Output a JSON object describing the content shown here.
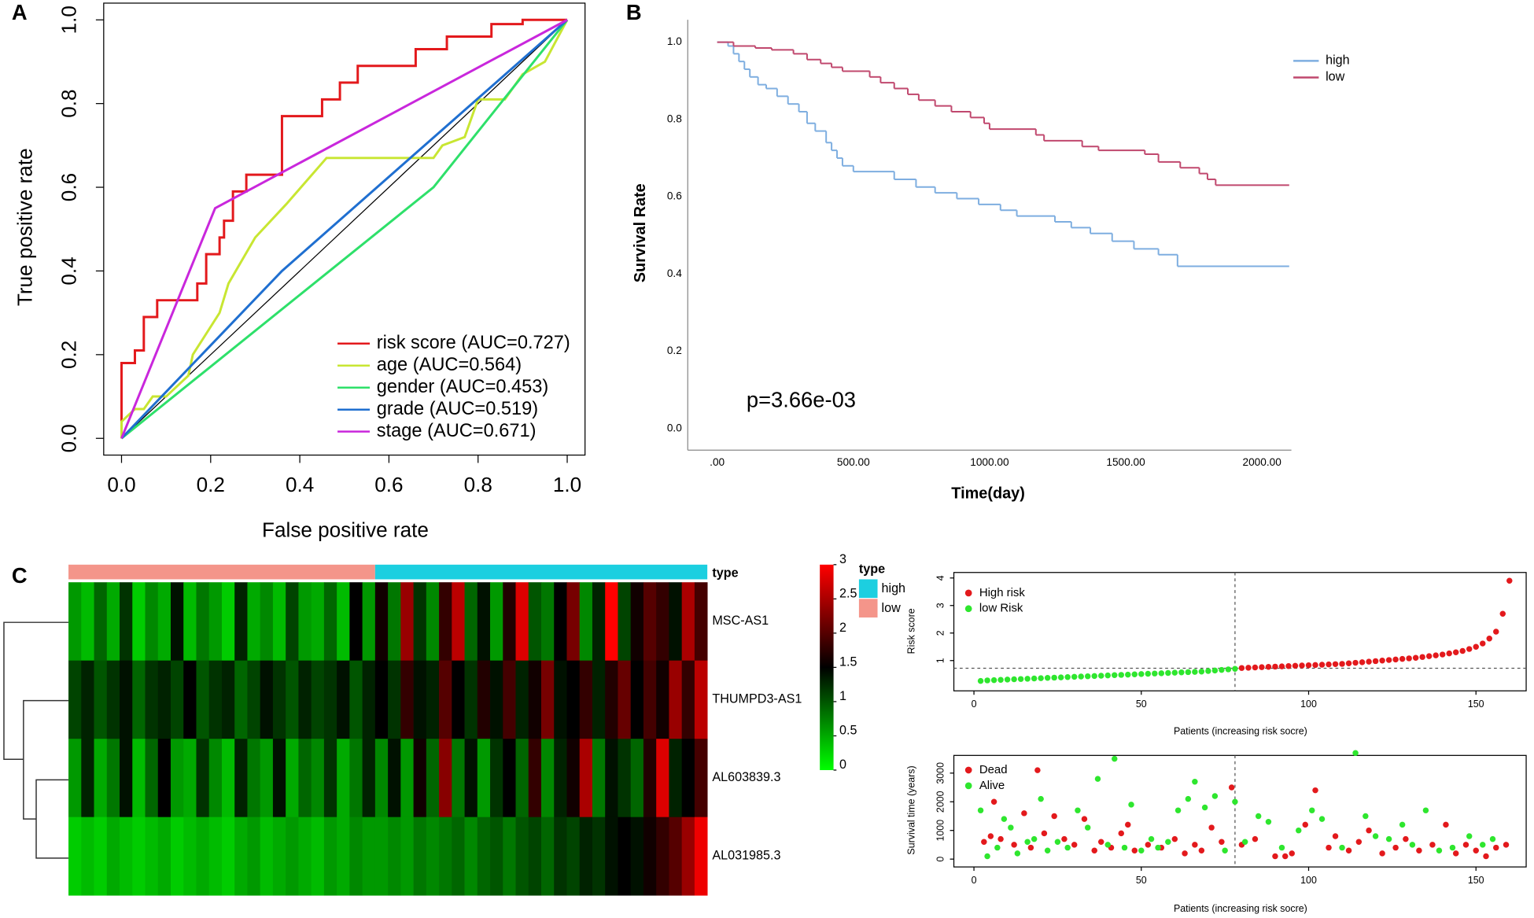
{
  "panel_labels": [
    "A",
    "B",
    "C"
  ],
  "chart_data": [
    {
      "type": "line",
      "xlabel": "False positive rate",
      "ylabel": "True positive rate",
      "xlim": [
        -0.04,
        1.04
      ],
      "ylim": [
        -0.04,
        1.04
      ],
      "xticks": [
        {
          "value": 0,
          "label": "0.0"
        },
        0.2,
        0.4,
        0.6,
        0.8,
        {
          "value": 1,
          "label": "1.0"
        }
      ],
      "yticks": [
        {
          "value": 0,
          "label": "0.0"
        },
        0.2,
        0.4,
        0.6,
        0.8,
        {
          "value": 1,
          "label": "1.0"
        }
      ],
      "legend": "bottom-right",
      "series": [
        {
          "name": "risk score (AUC=0.727)",
          "color": "#e3191c",
          "x": [
            0,
            0,
            0.03,
            0.03,
            0.05,
            0.05,
            0.08,
            0.08,
            0.17,
            0.17,
            0.19,
            0.19,
            0.22,
            0.22,
            0.23,
            0.23,
            0.25,
            0.25,
            0.28,
            0.28,
            0.36,
            0.36,
            0.45,
            0.45,
            0.49,
            0.49,
            0.53,
            0.53,
            0.66,
            0.66,
            0.73,
            0.73,
            0.83,
            0.83,
            0.9,
            0.9,
            1
          ],
          "values": [
            0,
            0.18,
            0.18,
            0.21,
            0.21,
            0.29,
            0.29,
            0.33,
            0.33,
            0.37,
            0.37,
            0.44,
            0.44,
            0.48,
            0.48,
            0.52,
            0.52,
            0.59,
            0.59,
            0.63,
            0.63,
            0.77,
            0.77,
            0.81,
            0.81,
            0.85,
            0.85,
            0.89,
            0.89,
            0.93,
            0.93,
            0.96,
            0.96,
            0.99,
            0.99,
            1,
            1
          ]
        },
        {
          "name": "age (AUC=0.564)",
          "color": "#c8e632",
          "x": [
            0,
            0,
            0.03,
            0.05,
            0.07,
            0.1,
            0.15,
            0.16,
            0.22,
            0.24,
            0.3,
            0.37,
            0.46,
            0.7,
            0.72,
            0.77,
            0.8,
            0.86,
            0.9,
            0.95,
            1
          ],
          "values": [
            0,
            0.04,
            0.07,
            0.07,
            0.1,
            0.1,
            0.15,
            0.2,
            0.3,
            0.37,
            0.48,
            0.56,
            0.67,
            0.67,
            0.7,
            0.72,
            0.81,
            0.81,
            0.87,
            0.9,
            1
          ]
        },
        {
          "name": "gender (AUC=0.453)",
          "color": "#2ee06a",
          "x": [
            0,
            0.7,
            1
          ],
          "values": [
            0,
            0.6,
            1
          ]
        },
        {
          "name": "grade (AUC=0.519)",
          "color": "#1f6fd0",
          "x": [
            0,
            0.36,
            1
          ],
          "values": [
            0,
            0.4,
            1
          ]
        },
        {
          "name": "stage (AUC=0.671)",
          "color": "#c927dc",
          "x": [
            0,
            0.21,
            1
          ],
          "values": [
            0,
            0.55,
            1
          ]
        }
      ]
    },
    {
      "type": "step",
      "xlabel": "Time(day)",
      "ylabel": "Survival Rate",
      "annotation": "p=3.66e-03",
      "xlim": [
        -108,
        2108
      ],
      "ylim": [
        -0.056,
        1.058
      ],
      "xticks": [
        {
          "value": 0,
          "label": ".00"
        },
        {
          "value": 500,
          "label": "500.00"
        },
        {
          "value": 1000,
          "label": "1000.00"
        },
        {
          "value": 1500,
          "label": "1500.00"
        },
        {
          "value": 2000,
          "label": "2000.00"
        }
      ],
      "yticks": [
        {
          "value": 0,
          "label": "0.0"
        },
        0.2,
        0.4,
        0.6,
        0.8,
        {
          "value": 1,
          "label": "1.0"
        }
      ],
      "legend": "top-right",
      "series": [
        {
          "name": "high",
          "color": "#7eaee0",
          "x": [
            0,
            40,
            60,
            80,
            100,
            120,
            150,
            180,
            220,
            260,
            300,
            330,
            360,
            400,
            420,
            440,
            460,
            500,
            650,
            730,
            800,
            880,
            960,
            1040,
            1100,
            1240,
            1300,
            1370,
            1450,
            1530,
            1620,
            1690,
            2100
          ],
          "values": [
            1.0,
            0.99,
            0.97,
            0.95,
            0.93,
            0.91,
            0.89,
            0.88,
            0.86,
            0.84,
            0.82,
            0.79,
            0.77,
            0.74,
            0.72,
            0.7,
            0.68,
            0.665,
            0.645,
            0.625,
            0.61,
            0.595,
            0.58,
            0.565,
            0.55,
            0.535,
            0.52,
            0.505,
            0.485,
            0.465,
            0.45,
            0.42,
            0.42
          ]
        },
        {
          "name": "low",
          "color": "#c0486e",
          "x": [
            0,
            60,
            140,
            200,
            280,
            330,
            380,
            420,
            460,
            560,
            600,
            650,
            700,
            740,
            800,
            860,
            930,
            980,
            1000,
            1170,
            1200,
            1340,
            1400,
            1570,
            1620,
            1700,
            1770,
            1800,
            1830,
            2100
          ],
          "values": [
            1.0,
            0.99,
            0.985,
            0.98,
            0.97,
            0.955,
            0.945,
            0.935,
            0.925,
            0.91,
            0.895,
            0.88,
            0.865,
            0.85,
            0.835,
            0.82,
            0.805,
            0.79,
            0.775,
            0.76,
            0.745,
            0.73,
            0.72,
            0.71,
            0.69,
            0.675,
            0.66,
            0.645,
            0.63,
            0.63
          ]
        }
      ]
    },
    {
      "type": "heatmap",
      "annotation_title": "type",
      "rows": [
        "MSC-AS1",
        "THUMPD3-AS1",
        "AL603839.3",
        "AL031985.3"
      ],
      "type_groups": [
        {
          "name": "low",
          "color": "#f4958a",
          "count": 24
        },
        {
          "name": "high",
          "color": "#1ccfe0",
          "count": 26
        }
      ],
      "colorscale": [
        "#00ff00",
        "#000000",
        "#ff0000"
      ],
      "zlim": [
        0,
        3
      ],
      "zticks": [
        0,
        0.5,
        1,
        1.5,
        2,
        2.5,
        3
      ],
      "values": [
        [
          0.6,
          0.4,
          0.9,
          0.5,
          1.2,
          0.3,
          0.7,
          0.5,
          1.4,
          0.4,
          0.8,
          0.6,
          0.3,
          1.3,
          0.5,
          0.7,
          0.4,
          1.1,
          0.6,
          0.5,
          0.9,
          0.4,
          1.5,
          0.6,
          1.6,
          0.8,
          2.4,
          1.2,
          0.7,
          1.8,
          2.6,
          0.9,
          1.4,
          0.6,
          1.7,
          2.8,
          1.0,
          0.8,
          1.5,
          2.2,
          0.7,
          1.3,
          3.0,
          1.1,
          1.6,
          2.0,
          1.8,
          1.4,
          2.5,
          1.9
        ],
        [
          1.1,
          1.3,
          1.0,
          1.2,
          1.4,
          0.9,
          1.2,
          1.3,
          1.1,
          1.5,
          1.0,
          1.2,
          1.3,
          0.9,
          1.1,
          1.4,
          1.2,
          1.0,
          1.3,
          1.1,
          1.2,
          1.4,
          1.0,
          1.3,
          1.5,
          1.2,
          1.8,
          1.4,
          1.3,
          2.0,
          1.5,
          1.2,
          1.7,
          1.4,
          1.9,
          1.3,
          1.6,
          2.2,
          1.4,
          1.5,
          1.8,
          1.3,
          1.7,
          2.1,
          1.5,
          1.9,
          1.6,
          2.4,
          1.8,
          2.6
        ],
        [
          0.6,
          1.3,
          0.5,
          0.8,
          1.4,
          0.4,
          0.9,
          1.5,
          0.6,
          0.5,
          1.2,
          0.7,
          0.4,
          1.3,
          0.8,
          0.6,
          1.4,
          0.5,
          0.9,
          0.7,
          1.2,
          0.5,
          0.8,
          1.3,
          0.7,
          1.4,
          0.6,
          1.6,
          0.9,
          2.3,
          0.8,
          1.4,
          0.6,
          1.2,
          1.5,
          0.9,
          1.8,
          0.7,
          1.3,
          1.6,
          2.5,
          0.8,
          1.4,
          1.2,
          0.9,
          1.7,
          2.8,
          1.3,
          1.5,
          1.9
        ],
        [
          0.3,
          0.4,
          0.3,
          0.5,
          0.4,
          0.3,
          0.4,
          0.5,
          0.3,
          0.4,
          0.5,
          0.4,
          0.3,
          0.5,
          0.6,
          0.4,
          0.5,
          0.6,
          0.5,
          0.4,
          0.6,
          0.5,
          0.7,
          0.6,
          0.6,
          0.7,
          0.6,
          0.8,
          0.7,
          0.8,
          0.9,
          0.7,
          0.9,
          1.0,
          0.8,
          1.0,
          1.1,
          0.9,
          1.2,
          1.1,
          1.3,
          1.2,
          1.4,
          1.5,
          1.4,
          1.6,
          1.8,
          2.0,
          2.4,
          2.9
        ]
      ]
    },
    {
      "type": "scatter",
      "xlabel": "Patients (increasing risk socre)",
      "ylabel": "Risk score",
      "xlim": [
        -6,
        165
      ],
      "ylim": [
        -0.1,
        4.2
      ],
      "xticks": [
        0,
        50,
        100,
        150
      ],
      "yticks": [
        1,
        2,
        3,
        4
      ],
      "reference_x": 78,
      "reference_y": 0.72,
      "legend": "top-left",
      "series": [
        {
          "name": "High risk",
          "color": "#e3191c",
          "x": [
            80,
            82,
            84,
            86,
            88,
            90,
            92,
            94,
            96,
            98,
            100,
            102,
            104,
            106,
            108,
            110,
            112,
            114,
            116,
            118,
            120,
            122,
            124,
            126,
            128,
            130,
            132,
            134,
            136,
            138,
            140,
            142,
            144,
            146,
            148,
            150,
            152,
            154,
            156,
            158,
            160
          ],
          "values": [
            0.73,
            0.74,
            0.75,
            0.76,
            0.77,
            0.78,
            0.79,
            0.8,
            0.81,
            0.82,
            0.83,
            0.84,
            0.85,
            0.86,
            0.87,
            0.88,
            0.9,
            0.92,
            0.94,
            0.96,
            0.98,
            1.0,
            1.02,
            1.04,
            1.06,
            1.08,
            1.1,
            1.13,
            1.16,
            1.19,
            1.22,
            1.26,
            1.3,
            1.35,
            1.42,
            1.5,
            1.62,
            1.8,
            2.05,
            2.7,
            3.9
          ]
        },
        {
          "name": "low Risk",
          "color": "#2ee62e",
          "x": [
            2,
            4,
            6,
            8,
            10,
            12,
            14,
            16,
            18,
            20,
            22,
            24,
            26,
            28,
            30,
            32,
            34,
            36,
            38,
            40,
            42,
            44,
            46,
            48,
            50,
            52,
            54,
            56,
            58,
            60,
            62,
            64,
            66,
            68,
            70,
            72,
            74,
            76,
            78
          ],
          "values": [
            0.26,
            0.28,
            0.29,
            0.3,
            0.31,
            0.32,
            0.33,
            0.34,
            0.35,
            0.36,
            0.37,
            0.38,
            0.39,
            0.4,
            0.41,
            0.42,
            0.43,
            0.44,
            0.45,
            0.46,
            0.47,
            0.48,
            0.49,
            0.5,
            0.51,
            0.52,
            0.53,
            0.54,
            0.55,
            0.56,
            0.57,
            0.58,
            0.59,
            0.6,
            0.62,
            0.64,
            0.66,
            0.68,
            0.7
          ]
        }
      ]
    },
    {
      "type": "scatter",
      "xlabel": "Patients (increasing risk socre)",
      "ylabel": "Survival time (years)",
      "xlim": [
        -6,
        165
      ],
      "ylim": [
        -273,
        3617
      ],
      "xticks": [
        0,
        50,
        100,
        150
      ],
      "yticks": [
        0,
        1000,
        2000,
        3000
      ],
      "reference_x": 78,
      "legend": "top-left",
      "series": [
        {
          "name": "Dead",
          "color": "#e3191c",
          "x": [
            3,
            5,
            6,
            8,
            12,
            15,
            17,
            19,
            21,
            24,
            27,
            30,
            33,
            36,
            38,
            41,
            44,
            46,
            48,
            52,
            56,
            60,
            63,
            66,
            68,
            71,
            74,
            77,
            80,
            84,
            90,
            93,
            95,
            99,
            102,
            106,
            108,
            112,
            115,
            118,
            122,
            126,
            129,
            133,
            137,
            141,
            144,
            147,
            150,
            153,
            156,
            159
          ],
          "values": [
            600,
            800,
            2000,
            700,
            500,
            1600,
            400,
            3100,
            900,
            1500,
            700,
            500,
            1400,
            300,
            600,
            400,
            900,
            1200,
            300,
            500,
            400,
            700,
            200,
            500,
            300,
            1100,
            600,
            2500,
            500,
            700,
            100,
            100,
            200,
            1200,
            2400,
            400,
            800,
            300,
            600,
            1000,
            200,
            400,
            700,
            300,
            500,
            1200,
            200,
            500,
            300,
            100,
            400,
            500
          ]
        },
        {
          "name": "Alive",
          "color": "#2ee62e",
          "x": [
            2,
            4,
            7,
            9,
            11,
            13,
            16,
            18,
            20,
            22,
            25,
            28,
            31,
            34,
            37,
            40,
            42,
            45,
            47,
            50,
            53,
            55,
            58,
            61,
            64,
            66,
            69,
            72,
            75,
            78,
            81,
            85,
            88,
            92,
            97,
            101,
            104,
            110,
            114,
            117,
            120,
            124,
            128,
            131,
            135,
            139,
            143,
            148,
            152,
            155
          ],
          "values": [
            1700,
            100,
            400,
            1400,
            1100,
            200,
            600,
            700,
            2100,
            300,
            600,
            400,
            1700,
            1100,
            2800,
            500,
            3500,
            400,
            1900,
            300,
            700,
            400,
            600,
            1700,
            2100,
            2700,
            1800,
            2200,
            300,
            2000,
            600,
            1500,
            1300,
            400,
            1000,
            1700,
            1400,
            400,
            3700,
            1500,
            800,
            700,
            1200,
            500,
            1700,
            300,
            400,
            800,
            500,
            700
          ]
        }
      ]
    }
  ]
}
